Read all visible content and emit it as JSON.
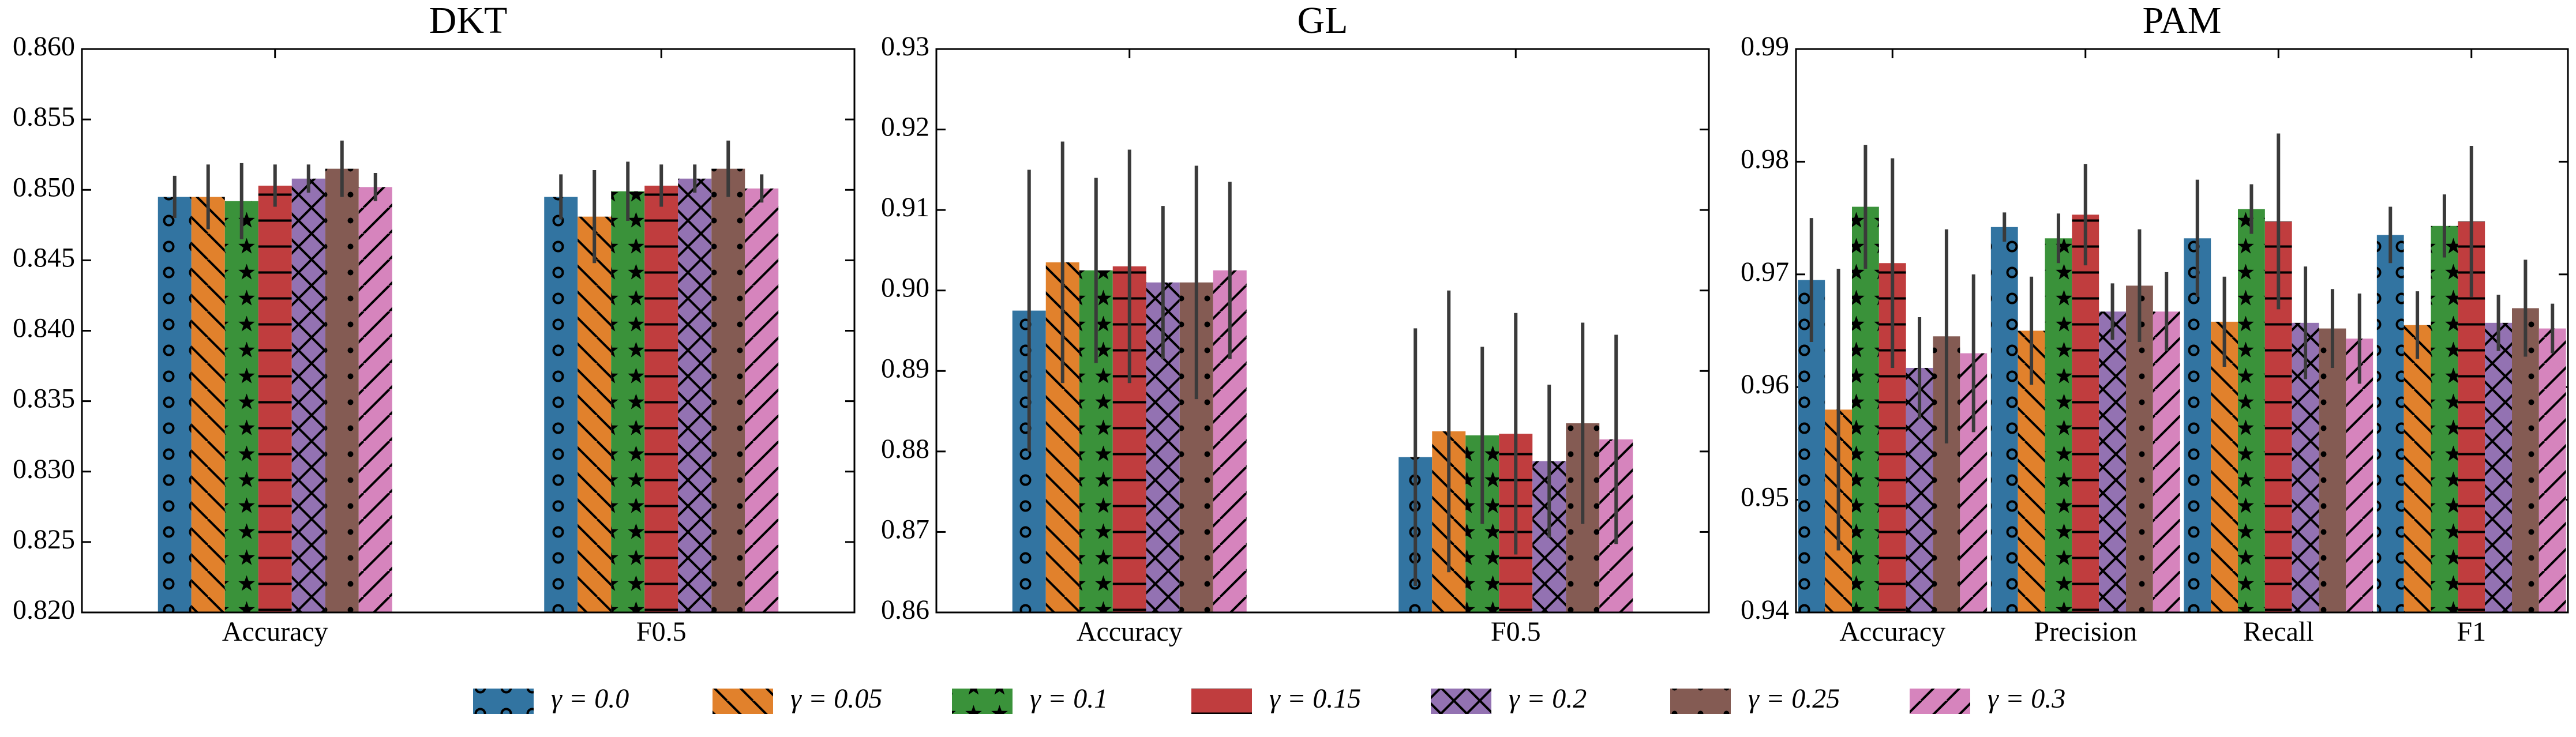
{
  "chart_data": [
    {
      "type": "bar",
      "title": "DKT",
      "categories": [
        "Accuracy",
        "F0.5"
      ],
      "ylim": [
        0.82,
        0.86
      ],
      "yticks": [
        {
          "value": 0.82,
          "label": "0.820"
        },
        0.825,
        {
          "value": 0.83,
          "label": "0.830"
        },
        0.835,
        {
          "value": 0.84,
          "label": "0.840"
        },
        0.845,
        {
          "value": 0.85,
          "label": "0.850"
        },
        0.855,
        {
          "value": 0.86,
          "label": "0.860"
        }
      ],
      "series": [
        {
          "name": "γ = 0.0",
          "color": "#3274a1",
          "hatch": "o",
          "values": [
            0.8495,
            0.8495
          ],
          "errors": [
            0.0015,
            0.0016
          ]
        },
        {
          "name": "γ = 0.05",
          "color": "#e1812c",
          "hatch": "\\",
          "values": [
            0.8495,
            0.8481
          ],
          "errors": [
            0.0023,
            0.0033
          ]
        },
        {
          "name": "γ = 0.1",
          "color": "#3a923a",
          "hatch": "*",
          "values": [
            0.8492,
            0.8499
          ],
          "errors": [
            0.0027,
            0.0021
          ]
        },
        {
          "name": "γ = 0.15",
          "color": "#c03d3e",
          "hatch": "-",
          "values": [
            0.8503,
            0.8503
          ],
          "errors": [
            0.0015,
            0.0015
          ]
        },
        {
          "name": "γ = 0.2",
          "color": "#9372b2",
          "hatch": "x",
          "values": [
            0.8508,
            0.8508
          ],
          "errors": [
            0.001,
            0.001
          ]
        },
        {
          "name": "γ = 0.25",
          "color": "#845b53",
          "hatch": ".",
          "values": [
            0.8515,
            0.8515
          ],
          "errors": [
            0.002,
            0.002
          ]
        },
        {
          "name": "γ = 0.3",
          "color": "#d684bd",
          "hatch": "/",
          "values": [
            0.8502,
            0.8501
          ],
          "errors": [
            0.001,
            0.001
          ]
        }
      ]
    },
    {
      "type": "bar",
      "title": "GL",
      "categories": [
        "Accuracy",
        "F0.5"
      ],
      "ylim": [
        0.86,
        0.93
      ],
      "yticks": [
        0.86,
        0.87,
        0.88,
        0.89,
        {
          "value": 0.9,
          "label": "0.90"
        },
        0.91,
        0.92,
        0.93
      ],
      "series": [
        {
          "name": "γ = 0.0",
          "color": "#3274a1",
          "hatch": "o",
          "values": [
            0.8975,
            0.8793
          ],
          "errors": [
            0.0175,
            0.016
          ]
        },
        {
          "name": "γ = 0.05",
          "color": "#e1812c",
          "hatch": "\\",
          "values": [
            0.9035,
            0.8825
          ],
          "errors": [
            0.015,
            0.0175
          ]
        },
        {
          "name": "γ = 0.1",
          "color": "#3a923a",
          "hatch": "*",
          "values": [
            0.9025,
            0.882
          ],
          "errors": [
            0.0115,
            0.011
          ]
        },
        {
          "name": "γ = 0.15",
          "color": "#c03d3e",
          "hatch": "-",
          "values": [
            0.903,
            0.8822
          ],
          "errors": [
            0.0145,
            0.015
          ]
        },
        {
          "name": "γ = 0.2",
          "color": "#9372b2",
          "hatch": "x",
          "values": [
            0.901,
            0.8788
          ],
          "errors": [
            0.0095,
            0.0095
          ]
        },
        {
          "name": "γ = 0.25",
          "color": "#845b53",
          "hatch": ".",
          "values": [
            0.901,
            0.8835
          ],
          "errors": [
            0.0145,
            0.0125
          ]
        },
        {
          "name": "γ = 0.3",
          "color": "#d684bd",
          "hatch": "/",
          "values": [
            0.9025,
            0.8815
          ],
          "errors": [
            0.011,
            0.013
          ]
        }
      ]
    },
    {
      "type": "bar",
      "title": "PAM",
      "categories": [
        "Accuracy",
        "Precision",
        "Recall",
        "F1"
      ],
      "ylim": [
        0.94,
        0.99
      ],
      "yticks": [
        0.94,
        0.95,
        0.96,
        0.97,
        0.98,
        0.99
      ],
      "series": [
        {
          "name": "γ = 0.0",
          "color": "#3274a1",
          "hatch": "o",
          "values": [
            0.9695,
            0.9742,
            0.9732,
            0.9735
          ],
          "errors": [
            0.0055,
            0.0013,
            0.0052,
            0.0025
          ]
        },
        {
          "name": "γ = 0.05",
          "color": "#e1812c",
          "hatch": "\\",
          "values": [
            0.958,
            0.965,
            0.9658,
            0.9655
          ],
          "errors": [
            0.0125,
            0.0048,
            0.004,
            0.003
          ]
        },
        {
          "name": "γ = 0.1",
          "color": "#3a923a",
          "hatch": "*",
          "values": [
            0.976,
            0.9732,
            0.9758,
            0.9743
          ],
          "errors": [
            0.0055,
            0.0022,
            0.0022,
            0.0028
          ]
        },
        {
          "name": "γ = 0.15",
          "color": "#c03d3e",
          "hatch": "-",
          "values": [
            0.971,
            0.9753,
            0.9747,
            0.9747
          ],
          "errors": [
            0.0093,
            0.0045,
            0.0078,
            0.0067
          ]
        },
        {
          "name": "γ = 0.2",
          "color": "#9372b2",
          "hatch": "x",
          "values": [
            0.9617,
            0.9667,
            0.9657,
            0.9657
          ],
          "errors": [
            0.0045,
            0.0025,
            0.005,
            0.0025
          ]
        },
        {
          "name": "γ = 0.25",
          "color": "#845b53",
          "hatch": ".",
          "values": [
            0.9645,
            0.969,
            0.9652,
            0.967
          ],
          "errors": [
            0.0095,
            0.005,
            0.0035,
            0.0043
          ]
        },
        {
          "name": "γ = 0.3",
          "color": "#d684bd",
          "hatch": "/",
          "values": [
            0.963,
            0.9667,
            0.9643,
            0.9652
          ],
          "errors": [
            0.007,
            0.0035,
            0.004,
            0.0022
          ]
        }
      ]
    }
  ]
}
